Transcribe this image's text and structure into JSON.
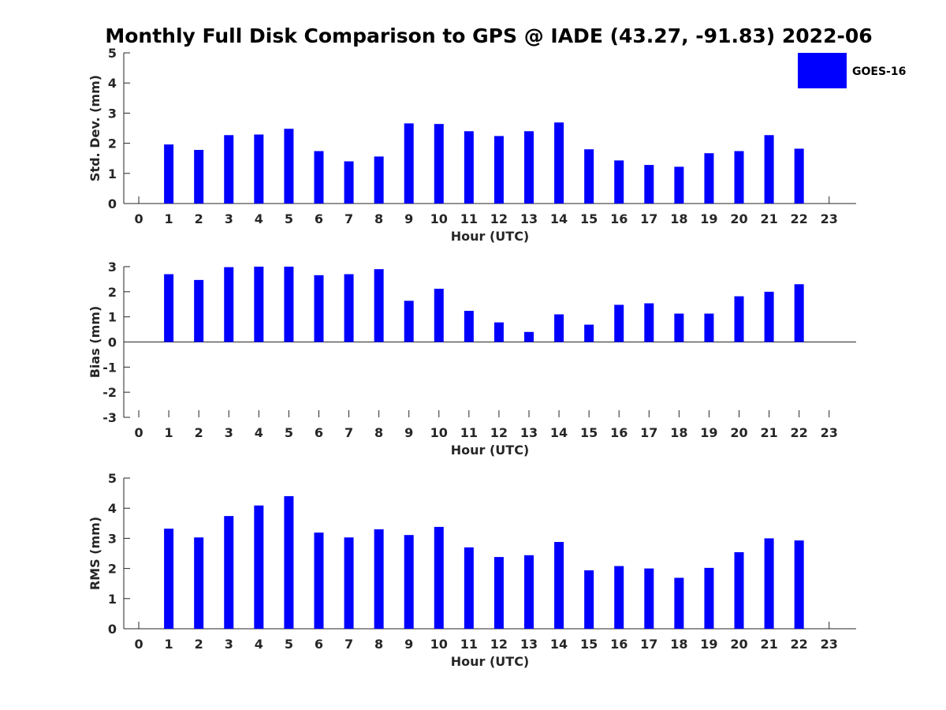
{
  "chart_title": "Monthly Full Disk Comparison to GPS @ IADE (43.27, -91.83) 2022-06",
  "legend": {
    "label": "GOES-16",
    "color": "#0000FF",
    "position": "top-right"
  },
  "chart_data": [
    {
      "type": "bar",
      "name": "std-dev",
      "xlabel": "Hour (UTC)",
      "ylabel": "Std. Dev. (mm)",
      "categories": [
        "0",
        "1",
        "2",
        "3",
        "4",
        "5",
        "6",
        "7",
        "8",
        "9",
        "10",
        "11",
        "12",
        "13",
        "14",
        "15",
        "16",
        "17",
        "18",
        "19",
        "20",
        "21",
        "22",
        "23"
      ],
      "x": [
        0,
        1,
        2,
        3,
        4,
        5,
        6,
        7,
        8,
        9,
        10,
        11,
        12,
        13,
        14,
        15,
        16,
        17,
        18,
        19,
        20,
        21,
        22,
        23
      ],
      "values": [
        null,
        1.96,
        1.78,
        2.27,
        2.29,
        2.48,
        1.74,
        1.4,
        1.56,
        2.66,
        2.64,
        2.4,
        2.24,
        2.4,
        2.69,
        1.8,
        1.43,
        1.28,
        1.22,
        1.67,
        1.74,
        2.27,
        1.82,
        null
      ],
      "xlim": [
        -0.5,
        23.9
      ],
      "ylim": [
        0,
        5
      ],
      "yticks": [
        "0",
        "1",
        "2",
        "3",
        "4",
        "5"
      ],
      "color": "#0000FF",
      "grid": false
    },
    {
      "type": "bar",
      "name": "bias",
      "xlabel": "Hour (UTC)",
      "ylabel": "Bias (mm)",
      "categories": [
        "0",
        "1",
        "2",
        "3",
        "4",
        "5",
        "6",
        "7",
        "8",
        "9",
        "10",
        "11",
        "12",
        "13",
        "14",
        "15",
        "16",
        "17",
        "18",
        "19",
        "20",
        "21",
        "22",
        "23"
      ],
      "x": [
        0,
        1,
        2,
        3,
        4,
        5,
        6,
        7,
        8,
        9,
        10,
        11,
        12,
        13,
        14,
        15,
        16,
        17,
        18,
        19,
        20,
        21,
        22,
        23
      ],
      "values": [
        null,
        2.7,
        2.47,
        2.98,
        3.0,
        3.0,
        2.66,
        2.7,
        2.9,
        1.64,
        2.12,
        1.24,
        0.78,
        0.4,
        1.1,
        0.69,
        1.48,
        1.54,
        1.13,
        1.13,
        1.82,
        2.0,
        2.3,
        null
      ],
      "xlim": [
        -0.5,
        23.9
      ],
      "ylim": [
        -3,
        3
      ],
      "yticks": [
        "-3",
        "-2",
        "-1",
        "0",
        "1",
        "2",
        "3"
      ],
      "color": "#0000FF",
      "grid": false
    },
    {
      "type": "bar",
      "name": "rms",
      "xlabel": "Hour (UTC)",
      "ylabel": "RMS (mm)",
      "categories": [
        "0",
        "1",
        "2",
        "3",
        "4",
        "5",
        "6",
        "7",
        "8",
        "9",
        "10",
        "11",
        "12",
        "13",
        "14",
        "15",
        "16",
        "17",
        "18",
        "19",
        "20",
        "21",
        "22",
        "23"
      ],
      "x": [
        0,
        1,
        2,
        3,
        4,
        5,
        6,
        7,
        8,
        9,
        10,
        11,
        12,
        13,
        14,
        15,
        16,
        17,
        18,
        19,
        20,
        21,
        22,
        23
      ],
      "values": [
        null,
        3.32,
        3.03,
        3.74,
        4.09,
        4.4,
        3.19,
        3.03,
        3.3,
        3.11,
        3.38,
        2.7,
        2.38,
        2.44,
        2.88,
        1.94,
        2.08,
        2.0,
        1.69,
        2.02,
        2.54,
        3.0,
        2.93,
        null
      ],
      "xlim": [
        -0.5,
        23.9
      ],
      "ylim": [
        0,
        5
      ],
      "yticks": [
        "0",
        "1",
        "2",
        "3",
        "4",
        "5"
      ],
      "color": "#0000FF",
      "grid": false
    }
  ]
}
